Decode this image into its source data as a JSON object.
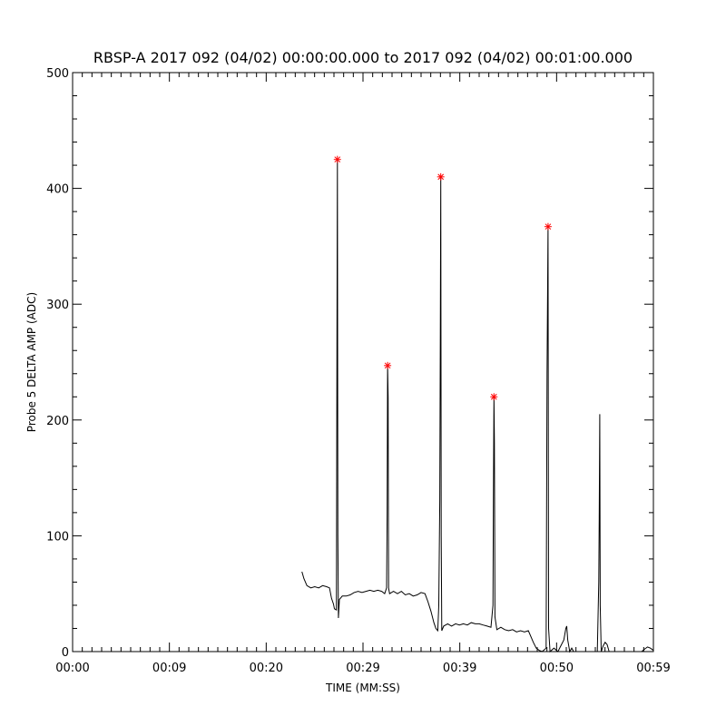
{
  "chart_data": {
    "type": "line",
    "title": "RBSP-A 2017 092 (04/02) 00:00:00.000 to 2017 092 (04/02) 00:01:00.000",
    "xlabel": "TIME (MM:SS)",
    "ylabel": "Probe 5 DELTA AMP (ADC)",
    "xlim": [
      0,
      59
    ],
    "ylim": [
      0,
      500
    ],
    "x_tick_values": [
      0,
      9.833,
      19.667,
      29.5,
      39.333,
      49.167,
      59
    ],
    "x_tick_labels": [
      "00:00",
      "00:09",
      "00:20",
      "00:29",
      "00:39",
      "00:50",
      "00:59"
    ],
    "y_ticks": [
      0,
      100,
      200,
      300,
      400,
      500
    ],
    "series": [
      {
        "color": "#000000",
        "points": [
          [
            23.3,
            69
          ],
          [
            23.5,
            63
          ],
          [
            23.8,
            57
          ],
          [
            24.2,
            55
          ],
          [
            24.6,
            56
          ],
          [
            25.0,
            55
          ],
          [
            25.4,
            57
          ],
          [
            25.8,
            56
          ],
          [
            26.1,
            55
          ],
          [
            26.3,
            46
          ],
          [
            26.5,
            41
          ],
          [
            26.6,
            37
          ],
          [
            26.8,
            36
          ],
          [
            26.85,
            270
          ],
          [
            26.9,
            425
          ],
          [
            26.95,
            100
          ],
          [
            27.0,
            29
          ],
          [
            27.1,
            45
          ],
          [
            27.4,
            48
          ],
          [
            27.8,
            48
          ],
          [
            28.2,
            49
          ],
          [
            28.6,
            51
          ],
          [
            29.0,
            52
          ],
          [
            29.4,
            51
          ],
          [
            29.8,
            52
          ],
          [
            30.2,
            53
          ],
          [
            30.6,
            52
          ],
          [
            31.0,
            53
          ],
          [
            31.4,
            52
          ],
          [
            31.7,
            50
          ],
          [
            31.9,
            55
          ],
          [
            31.95,
            120
          ],
          [
            32.0,
            247
          ],
          [
            32.05,
            220
          ],
          [
            32.1,
            55
          ],
          [
            32.2,
            50
          ],
          [
            32.6,
            52
          ],
          [
            33.0,
            50
          ],
          [
            33.4,
            52
          ],
          [
            33.8,
            49
          ],
          [
            34.2,
            50
          ],
          [
            34.6,
            48
          ],
          [
            35.0,
            49
          ],
          [
            35.4,
            51
          ],
          [
            35.8,
            50
          ],
          [
            36.1,
            43
          ],
          [
            36.4,
            35
          ],
          [
            36.7,
            25
          ],
          [
            36.9,
            20
          ],
          [
            37.1,
            18
          ],
          [
            37.2,
            40
          ],
          [
            37.3,
            130
          ],
          [
            37.35,
            270
          ],
          [
            37.4,
            410
          ],
          [
            37.45,
            100
          ],
          [
            37.5,
            18
          ],
          [
            37.7,
            22
          ],
          [
            38.1,
            24
          ],
          [
            38.5,
            22
          ],
          [
            38.9,
            24
          ],
          [
            39.3,
            23
          ],
          [
            39.7,
            24
          ],
          [
            40.1,
            23
          ],
          [
            40.5,
            25
          ],
          [
            40.9,
            24
          ],
          [
            41.3,
            24
          ],
          [
            41.7,
            23
          ],
          [
            42.1,
            22
          ],
          [
            42.5,
            21
          ],
          [
            42.7,
            40
          ],
          [
            42.75,
            130
          ],
          [
            42.8,
            220
          ],
          [
            42.85,
            180
          ],
          [
            42.9,
            30
          ],
          [
            43.1,
            19
          ],
          [
            43.5,
            21
          ],
          [
            43.9,
            19
          ],
          [
            44.3,
            18
          ],
          [
            44.7,
            19
          ],
          [
            45.1,
            17
          ],
          [
            45.5,
            18
          ],
          [
            45.9,
            17
          ],
          [
            46.3,
            18
          ],
          [
            46.5,
            14
          ],
          [
            46.8,
            8
          ],
          [
            47.1,
            3
          ],
          [
            47.4,
            1
          ],
          [
            47.7,
            0
          ],
          [
            48.1,
            3
          ],
          [
            48.2,
            240
          ],
          [
            48.3,
            367
          ],
          [
            48.35,
            20
          ],
          [
            48.5,
            0
          ],
          [
            48.9,
            3
          ],
          [
            49.3,
            0
          ],
          [
            49.6,
            5
          ],
          [
            49.9,
            10
          ],
          [
            50.1,
            20
          ],
          [
            50.2,
            22
          ],
          [
            50.3,
            10
          ],
          [
            50.5,
            0
          ],
          [
            50.7,
            3
          ],
          [
            50.9,
            0
          ],
          [
            51.3,
            0
          ],
          [
            51.7,
            0
          ],
          [
            52.1,
            0
          ],
          [
            52.5,
            0
          ],
          [
            52.9,
            0
          ],
          [
            53.3,
            0
          ],
          [
            53.45,
            60
          ],
          [
            53.5,
            115
          ],
          [
            53.55,
            205
          ],
          [
            53.6,
            40
          ],
          [
            53.7,
            0
          ],
          [
            53.9,
            5
          ],
          [
            54.1,
            8
          ],
          [
            54.3,
            6
          ],
          [
            54.5,
            0
          ],
          [
            55.0,
            0
          ],
          [
            56.0,
            0
          ],
          [
            57.0,
            0
          ],
          [
            57.8,
            0
          ],
          [
            58.1,
            2
          ],
          [
            58.4,
            4
          ],
          [
            58.7,
            3
          ],
          [
            59.0,
            1
          ]
        ]
      }
    ],
    "peak_markers": [
      [
        26.9,
        425
      ],
      [
        32.0,
        247
      ],
      [
        37.4,
        410
      ],
      [
        42.8,
        220
      ],
      [
        48.3,
        367
      ]
    ],
    "marker_color": "#ff0000"
  }
}
